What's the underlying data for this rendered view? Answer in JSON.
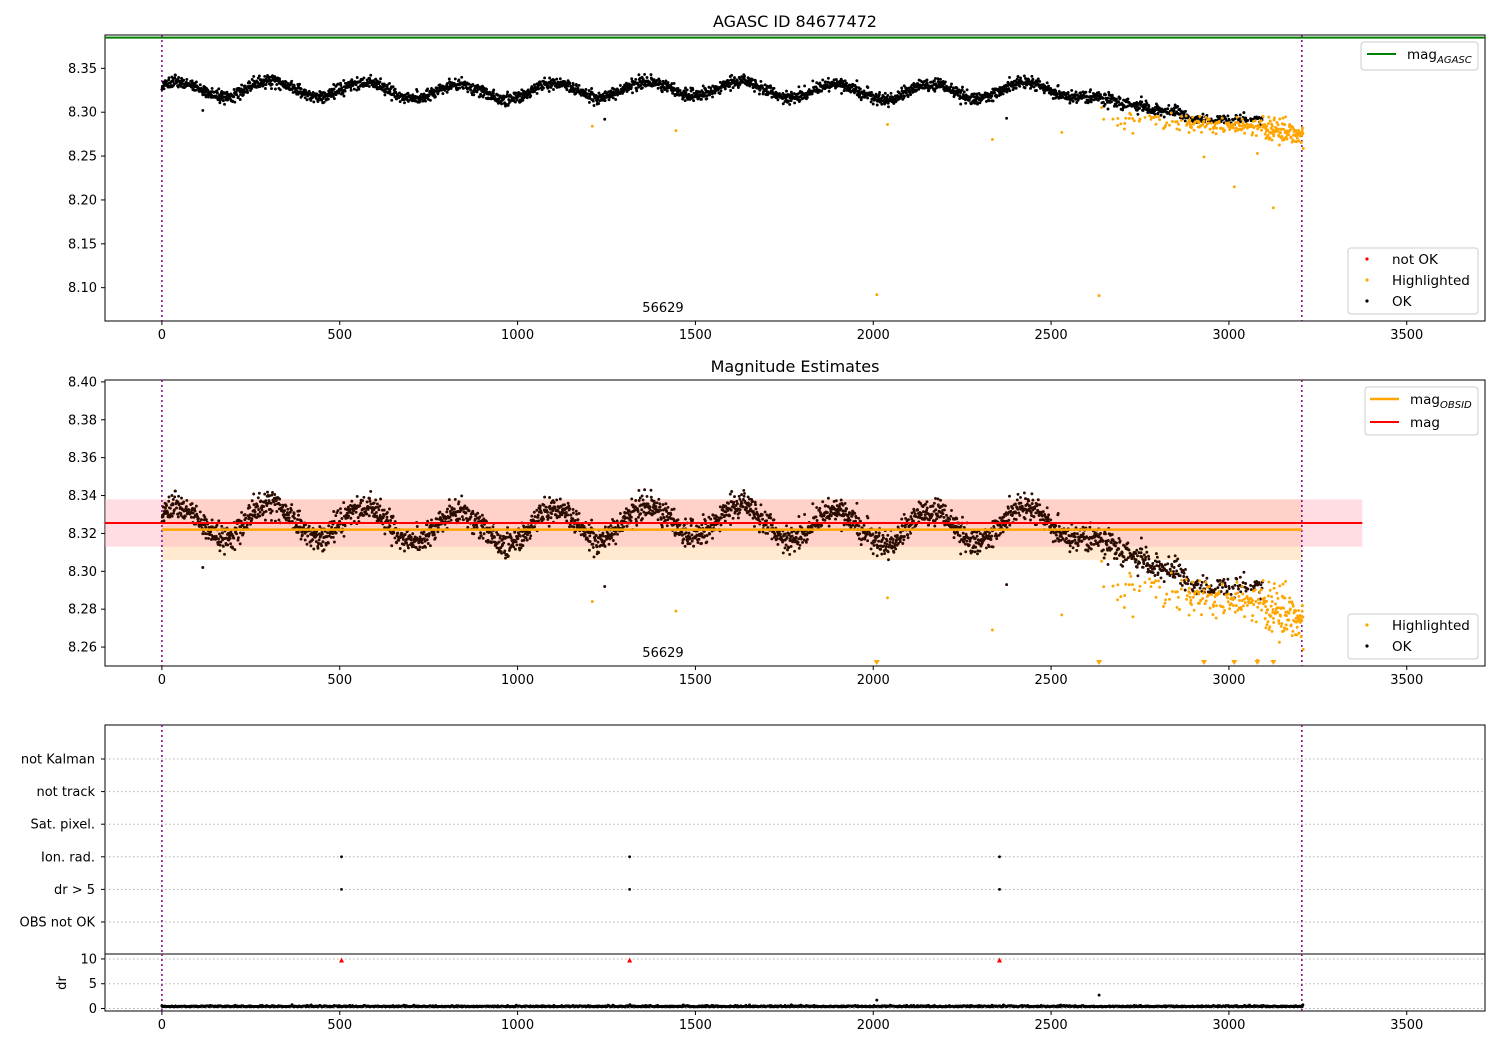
{
  "figure": {
    "title": "AGASC ID 84677472",
    "subtitle": "Magnitude Estimates",
    "obsid_label": "56629"
  },
  "colors": {
    "ok": "#000000",
    "highlighted": "#ffa500",
    "not_ok": "#ff0000",
    "mag_agasc": "#008000",
    "mag_obsid": "#ffa500",
    "mag": "#ff0000",
    "vline": "#800080",
    "band_obsid": "#ffd8a8",
    "band_mag": "#ffb3c1",
    "grid": "#b0b0b0"
  },
  "legend": {
    "mag_agasc_main": "mag",
    "mag_agasc_sub": "AGASC",
    "not_ok": "not OK",
    "highlighted": "Highlighted",
    "ok": "OK",
    "mag_obsid_main": "mag",
    "mag_obsid_sub": "OBSID",
    "mag": "mag"
  },
  "chart_data": [
    {
      "name": "agasc-magnitude",
      "type": "scatter",
      "title": "AGASC ID 84677472",
      "xlim": [
        -160,
        3720
      ],
      "ylim": [
        8.062,
        8.388
      ],
      "xticks": [
        0,
        500,
        1000,
        1500,
        2000,
        2500,
        3000,
        3500
      ],
      "yticks": [
        8.1,
        8.15,
        8.2,
        8.25,
        8.3,
        8.35
      ],
      "mag_agasc": 8.385,
      "vlines": [
        0,
        3205
      ],
      "obsid_label": "56629",
      "obsid_label_x": 1600,
      "n_points": 3210,
      "ok_trend": [
        [
          0,
          8.325
        ],
        [
          2560,
          8.325
        ],
        [
          2700,
          8.305
        ],
        [
          2850,
          8.305
        ],
        [
          2900,
          8.292
        ],
        [
          3100,
          8.292
        ]
      ],
      "highlighted_trend": [
        [
          2680,
          8.292
        ],
        [
          2900,
          8.287
        ],
        [
          3050,
          8.283
        ],
        [
          3205,
          8.276
        ]
      ],
      "highlighted_outliers": [
        [
          1210,
          8.284
        ],
        [
          1445,
          8.279
        ],
        [
          2010,
          8.092
        ],
        [
          2040,
          8.286
        ],
        [
          2335,
          8.269
        ],
        [
          2530,
          8.277
        ],
        [
          2635,
          8.091
        ],
        [
          2730,
          8.276
        ],
        [
          2930,
          8.249
        ],
        [
          3015,
          8.215
        ],
        [
          3080,
          8.253
        ],
        [
          3125,
          8.191
        ]
      ],
      "ok_outliers": [
        [
          115,
          8.302
        ],
        [
          1245,
          8.292
        ],
        [
          2375,
          8.293
        ]
      ],
      "legend": [
        "not OK",
        "Highlighted",
        "OK"
      ]
    },
    {
      "name": "magnitude-estimates",
      "type": "scatter",
      "title": "Magnitude Estimates",
      "xlim": [
        -160,
        3720
      ],
      "ylim": [
        8.25,
        8.401
      ],
      "xticks": [
        0,
        500,
        1000,
        1500,
        2000,
        2500,
        3000,
        3500
      ],
      "yticks": [
        8.26,
        8.28,
        8.3,
        8.32,
        8.34,
        8.36,
        8.38,
        8.4
      ],
      "mag": 8.3255,
      "mag_band": [
        8.313,
        8.338
      ],
      "mag_band_x": [
        -160,
        3375
      ],
      "mag_obsid": 8.322,
      "mag_obsid_band": [
        8.306,
        8.338
      ],
      "mag_obsid_x": [
        0,
        3205
      ],
      "vlines": [
        0,
        3205
      ],
      "obsid_label": "56629",
      "obsid_label_x": 1600,
      "offscale_markers": [
        2010,
        2635,
        2930,
        3015,
        3080,
        3125
      ],
      "legend": [
        "Highlighted",
        "OK",
        "mag OBSID",
        "mag"
      ]
    },
    {
      "name": "flags",
      "type": "scatter",
      "xlim": [
        -160,
        3720
      ],
      "categories": [
        "not Kalman",
        "not track",
        "Sat. pixel.",
        "Ion. rad.",
        "dr > 5",
        "OBS not OK"
      ],
      "ion_rad_x": [
        505,
        1315,
        2355
      ],
      "dr_gt_5_x": [
        505,
        1315,
        2355
      ],
      "vlines": [
        0,
        3205
      ]
    },
    {
      "name": "dr",
      "type": "scatter",
      "xlim": [
        -160,
        3720
      ],
      "ylim": [
        -0.5,
        11
      ],
      "ylabel": "dr",
      "yticks": [
        0,
        5,
        10
      ],
      "xticks": [
        0,
        500,
        1000,
        1500,
        2000,
        2500,
        3000,
        3500
      ],
      "clipped_x": [
        505,
        1315,
        2355
      ],
      "outliers": [
        [
          2010,
          1.7
        ],
        [
          2635,
          2.7
        ]
      ],
      "baseline": 0.35,
      "vlines": [
        0,
        3205
      ]
    }
  ]
}
